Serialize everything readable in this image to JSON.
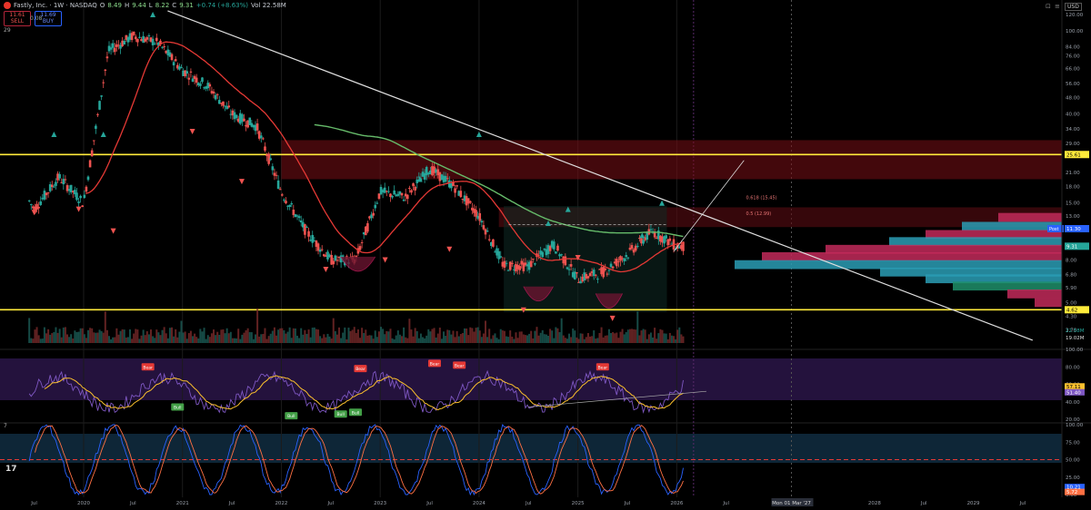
{
  "header": {
    "title": "Fastly, Inc. · 1W · NASDAQ",
    "open_label": "O",
    "open": "8.49",
    "high_label": "H",
    "high": "9.44",
    "low_label": "L",
    "low": "8.22",
    "close_label": "C",
    "close": "9.31",
    "change": "+0.74 (+8.63%)",
    "extra": "Vol 22.58M",
    "sell_price": "11.61",
    "sell_label": "SELL",
    "buy_price": "11.69",
    "buy_label": "BUY",
    "spread": "0.08",
    "indicator_count": "29",
    "currency": "USD"
  },
  "colors": {
    "up": "#26a69a",
    "down": "#ef5350",
    "yellow_line": "#ffeb3b",
    "trendline": "#e0e0e0",
    "ma_red": "#e53935",
    "ma_green": "#66bb6a",
    "rsi": "#7e57c2",
    "rsi_ma": "#fbc02d",
    "stoch_k": "#2962ff",
    "stoch_d": "#ff7043"
  },
  "chart_data": [
    {
      "type": "candlestick",
      "title": "Fastly, Inc. · 1W · NASDAQ",
      "scale": "log",
      "ylim": [
        3.2,
        130
      ],
      "y_ticks": [
        "120.00",
        "100.00",
        "84.00",
        "76.00",
        "66.00",
        "56.00",
        "48.00",
        "40.00",
        "34.00",
        "29.00",
        "25.61",
        "21.00",
        "18.00",
        "15.00",
        "13.00",
        "11.30",
        "9.31",
        "8.00",
        "6.80",
        "5.90",
        "5.00",
        "4.62",
        "4.30",
        "3.70",
        "3.20"
      ],
      "x_ticks": [
        "Jul",
        "2020",
        "Jul",
        "2021",
        "Jul",
        "2022",
        "Jul",
        "2023",
        "Jul",
        "2024",
        "Jul",
        "2025",
        "Jul",
        "2026",
        "Jul",
        "Mon 01 Mar '27",
        "2028",
        "Jul",
        "2029",
        "Jul"
      ],
      "horizontal_lines": [
        {
          "price": 25.61,
          "label": "25.61"
        },
        {
          "price": 4.62,
          "label": "4.62"
        }
      ],
      "fib_labels": [
        "0.618 (15.45)",
        "0.5 (12.99)"
      ],
      "price_labels": {
        "post": "Post",
        "post_price": "11.30",
        "last": "9.31"
      },
      "quarterly_close": [
        [
          "2019-Q2",
          22
        ],
        [
          "2019-Q3",
          14
        ],
        [
          "2019-Q4",
          20
        ],
        [
          "2020-Q1",
          15
        ],
        [
          "2020-Q2",
          80
        ],
        [
          "2020-Q3",
          95
        ],
        [
          "2020-Q4",
          88
        ],
        [
          "2021-Q1",
          65
        ],
        [
          "2021-Q2",
          55
        ],
        [
          "2021-Q3",
          40
        ],
        [
          "2021-Q4",
          35
        ],
        [
          "2022-Q1",
          17
        ],
        [
          "2022-Q2",
          11
        ],
        [
          "2022-Q3",
          8
        ],
        [
          "2022-Q4",
          8
        ],
        [
          "2023-Q1",
          17
        ],
        [
          "2023-Q2",
          16
        ],
        [
          "2023-Q3",
          22
        ],
        [
          "2023-Q4",
          18
        ],
        [
          "2024-Q1",
          13
        ],
        [
          "2024-Q2",
          7.5
        ],
        [
          "2024-Q3",
          7.5
        ],
        [
          "2024-Q4",
          9.5
        ],
        [
          "2025-Q1",
          6.5
        ],
        [
          "2025-Q2",
          7
        ],
        [
          "2025-Q3",
          8.5
        ],
        [
          "2025-Q4",
          11
        ],
        [
          "2026-Q1",
          9.31
        ]
      ],
      "volume_labels": [
        "22.58M",
        "19.02M"
      ]
    },
    {
      "type": "line",
      "title": "RSI",
      "ylim": [
        20,
        100
      ],
      "y_ticks": [
        "100.00",
        "80.00",
        "60.00",
        "40.00",
        "20.00"
      ],
      "series": [
        {
          "name": "RSI",
          "last": "57.11"
        },
        {
          "name": "RSI MA",
          "last": "51.40"
        }
      ],
      "annotations": [
        "Bear",
        "Bull",
        "Bear",
        "Bull",
        "Bull",
        "Bull",
        "Bear",
        "Bear",
        "Bear"
      ]
    },
    {
      "type": "line",
      "title": "Stochastic",
      "ylim": [
        0,
        100
      ],
      "y_ticks": [
        "100.00",
        "75.00",
        "50.00",
        "25.00",
        "0.00"
      ],
      "series": [
        {
          "name": "%K",
          "last": "10.21"
        },
        {
          "name": "%D",
          "last": "5.72"
        }
      ]
    }
  ],
  "misc": {
    "pane_count_3": "7",
    "tv_logo": "17"
  }
}
